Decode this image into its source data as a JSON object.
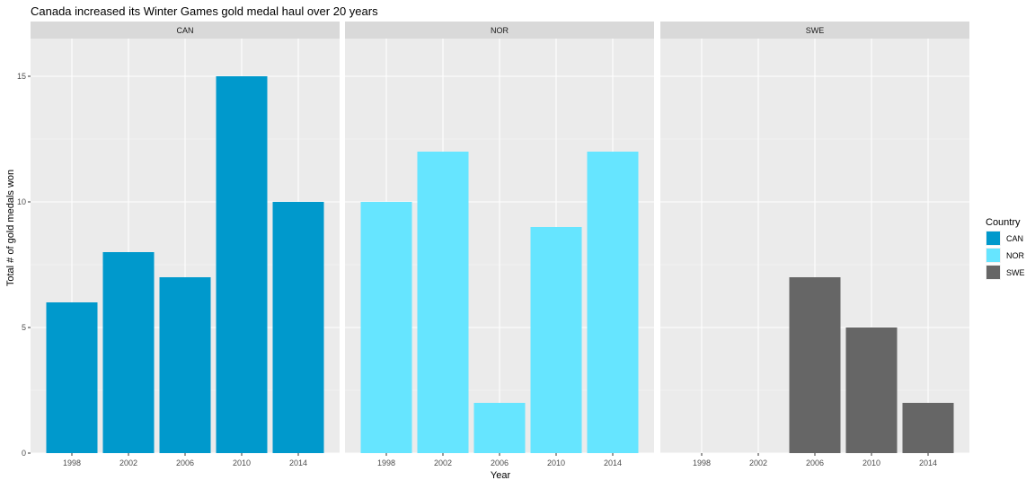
{
  "chart_data": {
    "type": "bar",
    "title": "Canada increased its Winter Games gold medal haul over 20 years",
    "xlabel": "Year",
    "ylabel": "Total # of gold medals won",
    "categories": [
      "1998",
      "2002",
      "2006",
      "2010",
      "2014"
    ],
    "ylim": [
      0,
      16.5
    ],
    "yticks": [
      0,
      5,
      10,
      15
    ],
    "grid": true,
    "legend": {
      "title": "Country",
      "placement": "right",
      "entries": [
        "CAN",
        "NOR",
        "SWE"
      ]
    },
    "series": [
      {
        "name": "CAN",
        "color": "#0099CC",
        "values": [
          6,
          8,
          7,
          15,
          10
        ]
      },
      {
        "name": "NOR",
        "color": "#66E5FF",
        "values": [
          10,
          12,
          2,
          9,
          12
        ]
      },
      {
        "name": "SWE",
        "color": "#666666",
        "values": [
          null,
          null,
          7,
          5,
          2
        ]
      }
    ]
  }
}
